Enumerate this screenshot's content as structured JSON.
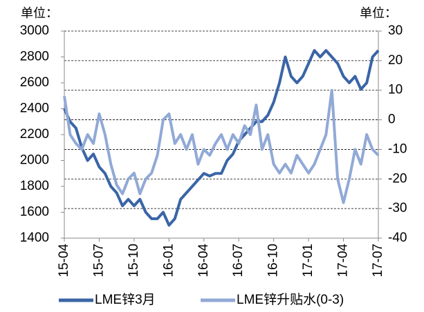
{
  "chart_data": {
    "type": "line",
    "y_unit_label": "单位：",
    "y2_unit_label": "单位：",
    "categories": [
      "15-04",
      null,
      null,
      null,
      null,
      null,
      "15-07",
      null,
      null,
      null,
      null,
      null,
      "15-10",
      null,
      null,
      null,
      null,
      null,
      "16-01",
      null,
      null,
      null,
      null,
      null,
      "16-04",
      null,
      null,
      null,
      null,
      null,
      "16-07",
      null,
      null,
      null,
      null,
      null,
      "16-10",
      null,
      null,
      null,
      null,
      null,
      "17-01",
      null,
      null,
      null,
      null,
      null,
      "17-04",
      null,
      null,
      null,
      null,
      null,
      "17-07"
    ],
    "series": [
      {
        "name": "LME锌3月",
        "color": "#3a65a6",
        "axis": "y",
        "values": [
          2400,
          2300,
          2250,
          2100,
          2000,
          2050,
          1950,
          1900,
          1800,
          1750,
          1650,
          1700,
          1650,
          1700,
          1600,
          1550,
          1550,
          1600,
          1500,
          1550,
          1700,
          1750,
          1800,
          1850,
          1900,
          1880,
          1900,
          1900,
          2000,
          2050,
          2150,
          2200,
          2250,
          2300,
          2300,
          2350,
          2450,
          2600,
          2800,
          2650,
          2600,
          2650,
          2750,
          2850,
          2800,
          2850,
          2800,
          2750,
          2650,
          2600,
          2650,
          2550,
          2600,
          2800,
          2850
        ]
      },
      {
        "name": "LME锌升贴水(0-3)",
        "color": "#91a9d6",
        "axis": "y2",
        "values": [
          8,
          -5,
          -8,
          -10,
          -5,
          -8,
          2,
          -5,
          -15,
          -22,
          -25,
          -20,
          -18,
          -25,
          -20,
          -18,
          -12,
          0,
          2,
          -8,
          -5,
          -10,
          -5,
          -15,
          -10,
          -12,
          -8,
          -5,
          -10,
          -5,
          -8,
          -2,
          -5,
          5,
          -10,
          -5,
          -15,
          -18,
          -15,
          -18,
          -12,
          -15,
          -18,
          -15,
          -10,
          -5,
          10,
          -20,
          -28,
          -20,
          -10,
          -15,
          -5,
          -10,
          -12
        ]
      }
    ],
    "ylim": [
      1400,
      3000
    ],
    "yticks": [
      1400,
      1600,
      1800,
      2000,
      2200,
      2400,
      2600,
      2800,
      3000
    ],
    "y2lim": [
      -40,
      30
    ],
    "y2ticks": [
      -40,
      -30,
      -20,
      -10,
      0,
      10,
      20,
      30
    ],
    "grid": true,
    "legend": "bottom"
  }
}
